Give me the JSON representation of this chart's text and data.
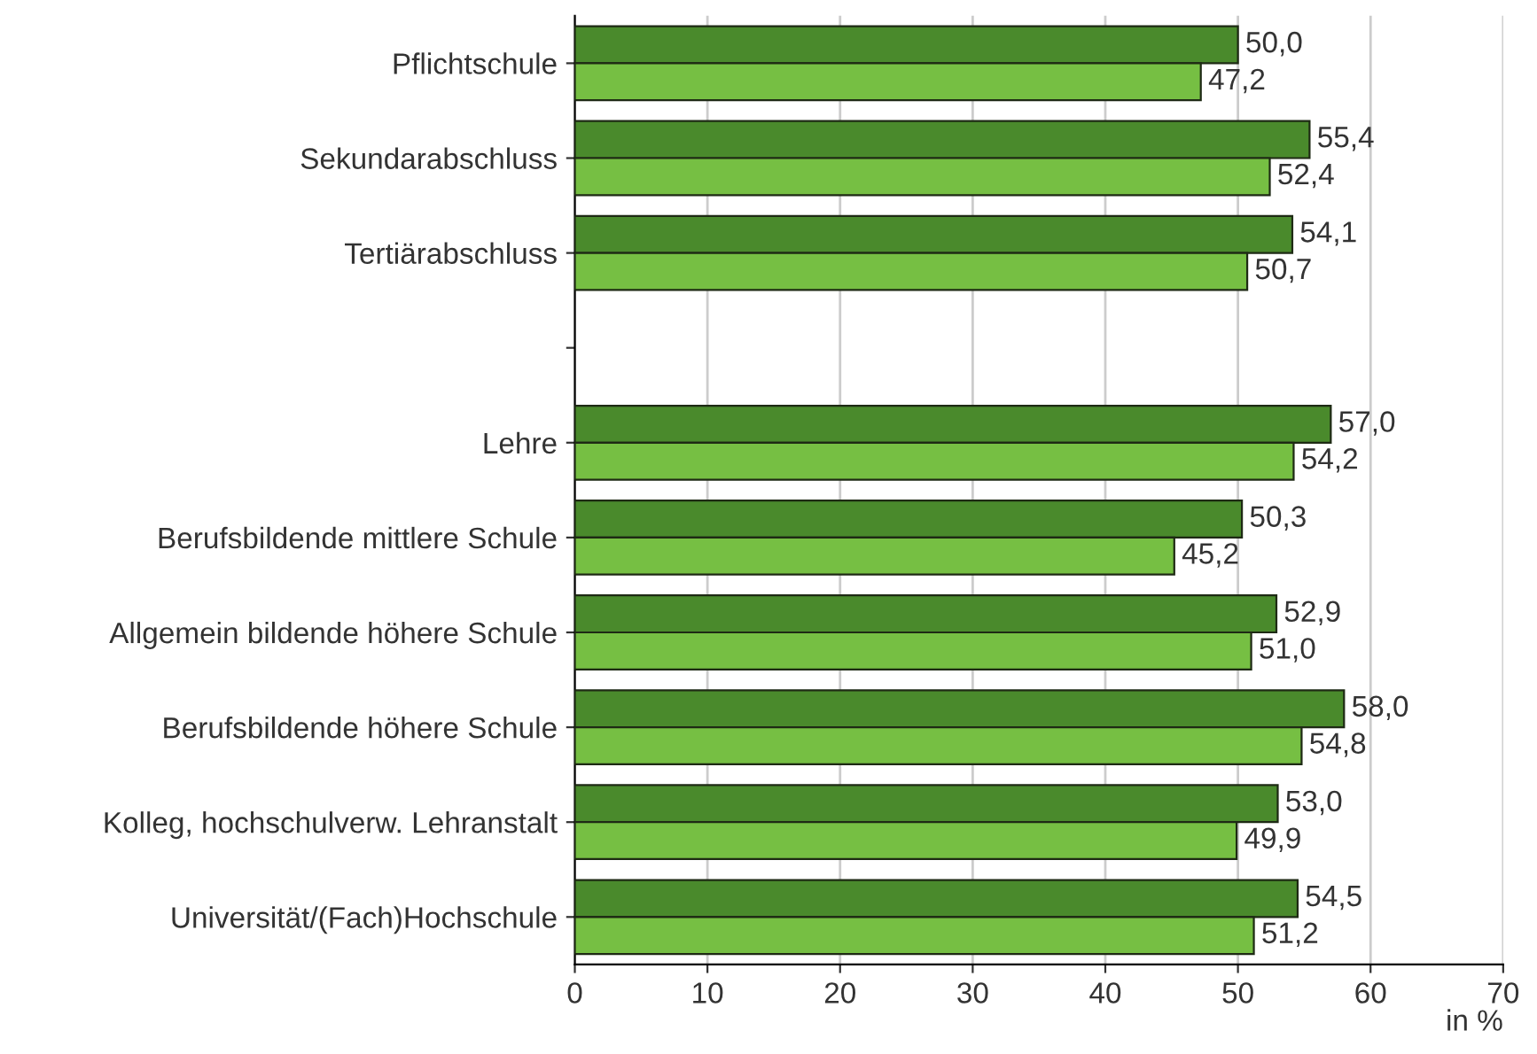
{
  "chart_data": {
    "type": "bar",
    "orientation": "horizontal",
    "xlabel": "in %",
    "categories": [
      "Pflichtschule",
      "Sekundarabschluss",
      "Tertiärabschluss",
      null,
      "Lehre",
      "Berufsbildende mittlere Schule",
      "Allgemein bildende höhere Schule",
      "Berufsbildende höhere Schule",
      "Kolleg, hochschulverw. Lehranstalt",
      "Universität/(Fach)Hochschule"
    ],
    "series": [
      {
        "color": "#4a8a2c",
        "values": [
          50.0,
          55.4,
          54.1,
          null,
          57.0,
          50.3,
          52.9,
          58.0,
          53.0,
          54.5
        ],
        "value_labels": [
          "50,0",
          "55,4",
          "54,1",
          null,
          "57,0",
          "50,3",
          "52,9",
          "58,0",
          "53,0",
          "54,5"
        ]
      },
      {
        "color": "#76bf43",
        "values": [
          47.2,
          52.4,
          50.7,
          null,
          54.2,
          45.2,
          51.0,
          54.8,
          49.9,
          51.2
        ],
        "value_labels": [
          "47,2",
          "52,4",
          "50,7",
          null,
          "54,2",
          "45,2",
          "51,0",
          "54,8",
          "49,9",
          "51,2"
        ]
      }
    ],
    "xlim": [
      0,
      70
    ],
    "xticks": [
      0,
      10,
      20,
      30,
      40,
      50,
      60,
      70
    ],
    "grid": "x"
  }
}
